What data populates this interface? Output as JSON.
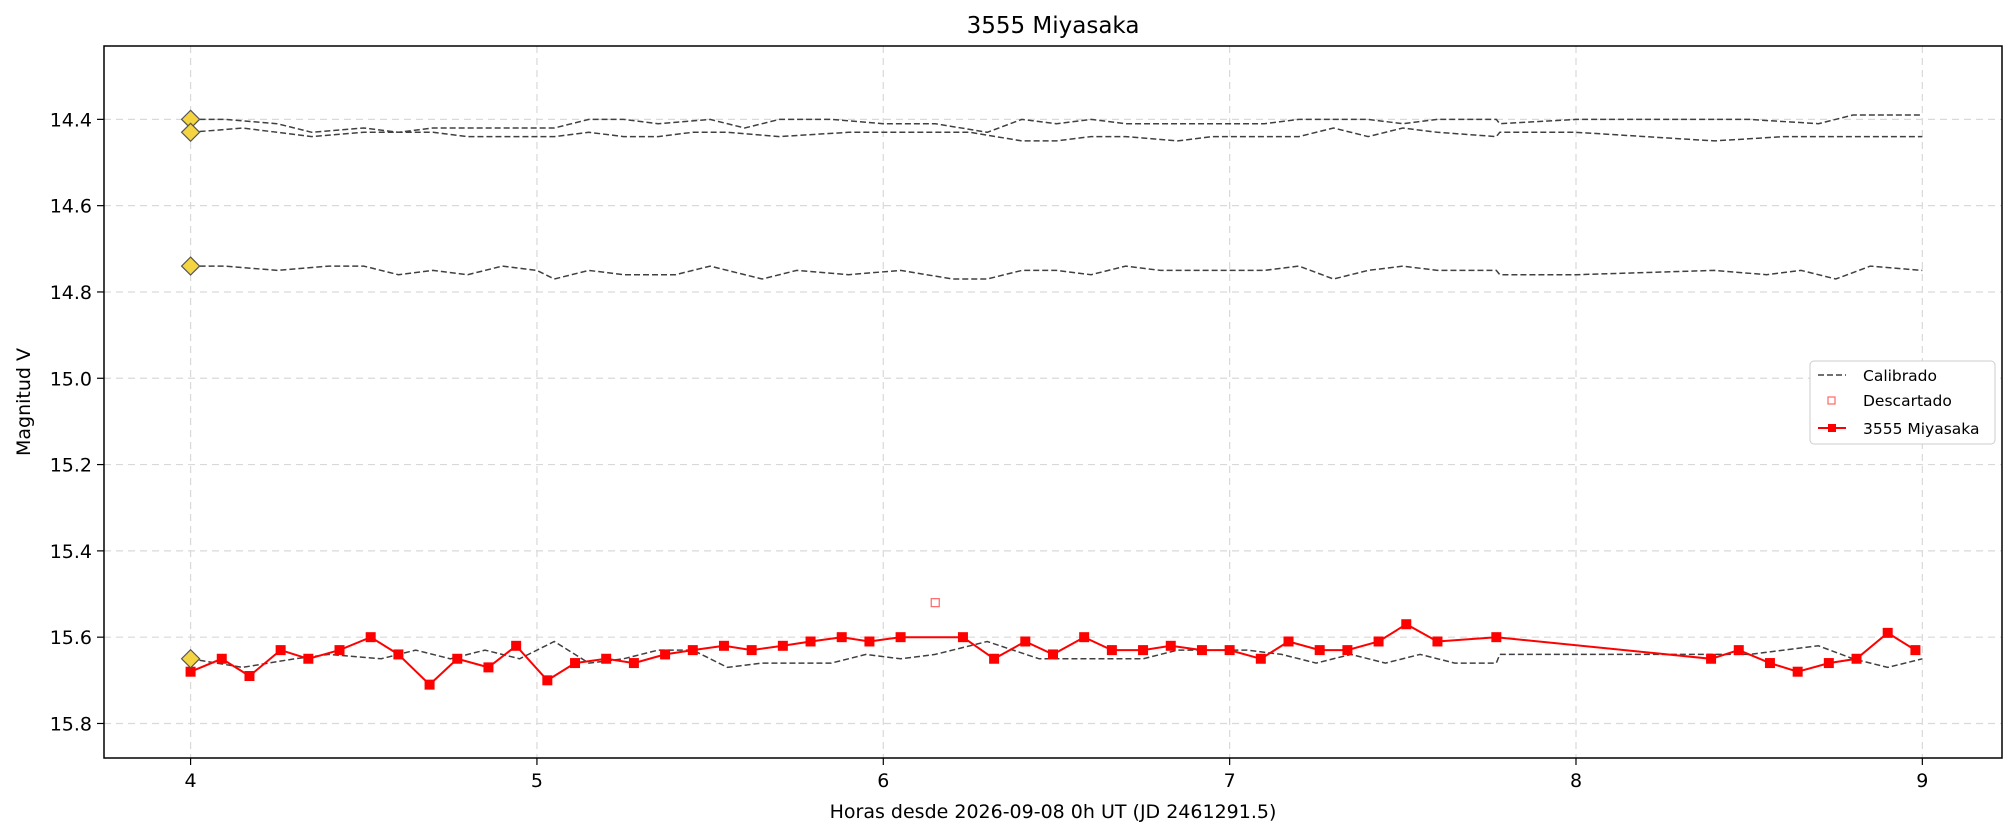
{
  "chart_data": {
    "type": "line",
    "title": "3555 Miyasaka",
    "xlabel": "Horas desde 2026-09-08 0h UT (JD 2461291.5)",
    "ylabel": "Magnitud V",
    "xlim": [
      3.75,
      9.23
    ],
    "ylim": [
      15.88,
      14.23
    ],
    "y_inverted": true,
    "grid": true,
    "legend_position": "center-right",
    "x_ticks": [
      4,
      5,
      6,
      7,
      8,
      9
    ],
    "x_tick_labels": [
      "4",
      "5",
      "6",
      "7",
      "8",
      "9"
    ],
    "y_ticks": [
      14.4,
      14.6,
      14.8,
      15.0,
      15.2,
      15.4,
      15.6,
      15.8
    ],
    "y_tick_labels": [
      "14.4",
      "14.6",
      "14.8",
      "15.0",
      "15.2",
      "15.4",
      "15.6",
      "15.8"
    ],
    "colors": {
      "target": "#ff0000",
      "calibrated": "#404040",
      "reference_marker": "#f5d442",
      "grid": "#d9d9d9"
    },
    "legend": [
      {
        "label": "Calibrado",
        "style": "dashed-gray"
      },
      {
        "label": "Descartado",
        "style": "hollow-red-square"
      },
      {
        "label": "3555 Miyasaka",
        "style": "red-line-square"
      }
    ],
    "series": [
      {
        "name": "3555 Miyasaka",
        "points": [
          [
            4.0,
            15.68
          ],
          [
            4.09,
            15.65
          ],
          [
            4.17,
            15.69
          ],
          [
            4.26,
            15.63
          ],
          [
            4.34,
            15.65
          ],
          [
            4.43,
            15.63
          ],
          [
            4.52,
            15.6
          ],
          [
            4.6,
            15.64
          ],
          [
            4.69,
            15.71
          ],
          [
            4.77,
            15.65
          ],
          [
            4.86,
            15.67
          ],
          [
            4.94,
            15.62
          ],
          [
            5.03,
            15.7
          ],
          [
            5.11,
            15.66
          ],
          [
            5.2,
            15.65
          ],
          [
            5.28,
            15.66
          ],
          [
            5.37,
            15.64
          ],
          [
            5.45,
            15.63
          ],
          [
            5.54,
            15.62
          ],
          [
            5.62,
            15.63
          ],
          [
            5.71,
            15.62
          ],
          [
            5.79,
            15.61
          ],
          [
            5.88,
            15.6
          ],
          [
            5.96,
            15.61
          ],
          [
            6.05,
            15.6
          ],
          [
            6.23,
            15.6
          ],
          [
            6.32,
            15.65
          ],
          [
            6.41,
            15.61
          ],
          [
            6.49,
            15.64
          ],
          [
            6.58,
            15.6
          ],
          [
            6.66,
            15.63
          ],
          [
            6.75,
            15.63
          ],
          [
            6.83,
            15.62
          ],
          [
            6.92,
            15.63
          ],
          [
            7.0,
            15.63
          ],
          [
            7.09,
            15.65
          ],
          [
            7.17,
            15.61
          ],
          [
            7.26,
            15.63
          ],
          [
            7.34,
            15.63
          ],
          [
            7.43,
            15.61
          ],
          [
            7.51,
            15.57
          ],
          [
            7.6,
            15.61
          ],
          [
            7.77,
            15.6
          ],
          [
            8.39,
            15.65
          ],
          [
            8.47,
            15.63
          ],
          [
            8.56,
            15.66
          ],
          [
            8.64,
            15.68
          ],
          [
            8.73,
            15.66
          ],
          [
            8.81,
            15.65
          ],
          [
            8.9,
            15.59
          ],
          [
            8.98,
            15.63
          ]
        ]
      },
      {
        "name": "Descartado",
        "points": [
          [
            6.15,
            15.52
          ]
        ]
      }
    ],
    "calibration_stars": [
      {
        "points": [
          [
            4.0,
            14.4
          ],
          [
            4.1,
            14.4
          ],
          [
            4.25,
            14.41
          ],
          [
            4.35,
            14.43
          ],
          [
            4.5,
            14.42
          ],
          [
            4.6,
            14.43
          ],
          [
            4.7,
            14.42
          ],
          [
            4.8,
            14.42
          ],
          [
            4.9,
            14.42
          ],
          [
            5.05,
            14.42
          ],
          [
            5.15,
            14.4
          ],
          [
            5.25,
            14.4
          ],
          [
            5.35,
            14.41
          ],
          [
            5.5,
            14.4
          ],
          [
            5.6,
            14.42
          ],
          [
            5.7,
            14.4
          ],
          [
            5.85,
            14.4
          ],
          [
            6.0,
            14.41
          ],
          [
            6.15,
            14.41
          ],
          [
            6.3,
            14.43
          ],
          [
            6.4,
            14.4
          ],
          [
            6.5,
            14.41
          ],
          [
            6.6,
            14.4
          ],
          [
            6.7,
            14.41
          ],
          [
            6.85,
            14.41
          ],
          [
            7.0,
            14.41
          ],
          [
            7.1,
            14.41
          ],
          [
            7.2,
            14.4
          ],
          [
            7.3,
            14.4
          ],
          [
            7.4,
            14.4
          ],
          [
            7.5,
            14.41
          ],
          [
            7.6,
            14.4
          ],
          [
            7.77,
            14.4
          ],
          [
            7.78,
            14.41
          ],
          [
            8.0,
            14.4
          ],
          [
            8.3,
            14.4
          ],
          [
            8.5,
            14.4
          ],
          [
            8.7,
            14.41
          ],
          [
            8.8,
            14.39
          ],
          [
            8.9,
            14.39
          ],
          [
            9.0,
            14.39
          ]
        ]
      },
      {
        "points": [
          [
            4.0,
            14.43
          ],
          [
            4.15,
            14.42
          ],
          [
            4.35,
            14.44
          ],
          [
            4.5,
            14.43
          ],
          [
            4.6,
            14.43
          ],
          [
            4.7,
            14.43
          ],
          [
            4.8,
            14.44
          ],
          [
            5.05,
            14.44
          ],
          [
            5.15,
            14.43
          ],
          [
            5.25,
            14.44
          ],
          [
            5.35,
            14.44
          ],
          [
            5.45,
            14.43
          ],
          [
            5.55,
            14.43
          ],
          [
            5.7,
            14.44
          ],
          [
            5.9,
            14.43
          ],
          [
            6.1,
            14.43
          ],
          [
            6.25,
            14.43
          ],
          [
            6.4,
            14.45
          ],
          [
            6.5,
            14.45
          ],
          [
            6.6,
            14.44
          ],
          [
            6.7,
            14.44
          ],
          [
            6.85,
            14.45
          ],
          [
            6.95,
            14.44
          ],
          [
            7.05,
            14.44
          ],
          [
            7.2,
            14.44
          ],
          [
            7.3,
            14.42
          ],
          [
            7.4,
            14.44
          ],
          [
            7.5,
            14.42
          ],
          [
            7.6,
            14.43
          ],
          [
            7.77,
            14.44
          ],
          [
            7.78,
            14.43
          ],
          [
            8.0,
            14.43
          ],
          [
            8.4,
            14.45
          ],
          [
            8.6,
            14.44
          ],
          [
            8.75,
            14.44
          ],
          [
            8.85,
            14.44
          ],
          [
            9.0,
            14.44
          ]
        ]
      },
      {
        "points": [
          [
            4.0,
            14.74
          ],
          [
            4.1,
            14.74
          ],
          [
            4.25,
            14.75
          ],
          [
            4.4,
            14.74
          ],
          [
            4.5,
            14.74
          ],
          [
            4.6,
            14.76
          ],
          [
            4.7,
            14.75
          ],
          [
            4.8,
            14.76
          ],
          [
            4.9,
            14.74
          ],
          [
            5.0,
            14.75
          ],
          [
            5.05,
            14.77
          ],
          [
            5.15,
            14.75
          ],
          [
            5.25,
            14.76
          ],
          [
            5.4,
            14.76
          ],
          [
            5.5,
            14.74
          ],
          [
            5.65,
            14.77
          ],
          [
            5.75,
            14.75
          ],
          [
            5.9,
            14.76
          ],
          [
            6.05,
            14.75
          ],
          [
            6.2,
            14.77
          ],
          [
            6.3,
            14.77
          ],
          [
            6.4,
            14.75
          ],
          [
            6.5,
            14.75
          ],
          [
            6.6,
            14.76
          ],
          [
            6.7,
            14.74
          ],
          [
            6.8,
            14.75
          ],
          [
            6.9,
            14.75
          ],
          [
            7.0,
            14.75
          ],
          [
            7.1,
            14.75
          ],
          [
            7.2,
            14.74
          ],
          [
            7.3,
            14.77
          ],
          [
            7.4,
            14.75
          ],
          [
            7.5,
            14.74
          ],
          [
            7.6,
            14.75
          ],
          [
            7.77,
            14.75
          ],
          [
            7.78,
            14.76
          ],
          [
            8.0,
            14.76
          ],
          [
            8.4,
            14.75
          ],
          [
            8.55,
            14.76
          ],
          [
            8.65,
            14.75
          ],
          [
            8.75,
            14.77
          ],
          [
            8.85,
            14.74
          ],
          [
            9.0,
            14.75
          ]
        ]
      },
      {
        "points": [
          [
            4.0,
            15.65
          ],
          [
            4.15,
            15.67
          ],
          [
            4.3,
            15.65
          ],
          [
            4.4,
            15.64
          ],
          [
            4.55,
            15.65
          ],
          [
            4.65,
            15.63
          ],
          [
            4.75,
            15.65
          ],
          [
            4.85,
            15.63
          ],
          [
            4.95,
            15.65
          ],
          [
            5.05,
            15.61
          ],
          [
            5.15,
            15.66
          ],
          [
            5.25,
            15.65
          ],
          [
            5.35,
            15.63
          ],
          [
            5.45,
            15.63
          ],
          [
            5.55,
            15.67
          ],
          [
            5.65,
            15.66
          ],
          [
            5.75,
            15.66
          ],
          [
            5.85,
            15.66
          ],
          [
            5.95,
            15.64
          ],
          [
            6.05,
            15.65
          ],
          [
            6.15,
            15.64
          ],
          [
            6.3,
            15.61
          ],
          [
            6.45,
            15.65
          ],
          [
            6.55,
            15.65
          ],
          [
            6.65,
            15.65
          ],
          [
            6.75,
            15.65
          ],
          [
            6.85,
            15.63
          ],
          [
            6.95,
            15.63
          ],
          [
            7.05,
            15.63
          ],
          [
            7.15,
            15.64
          ],
          [
            7.25,
            15.66
          ],
          [
            7.35,
            15.64
          ],
          [
            7.45,
            15.66
          ],
          [
            7.55,
            15.64
          ],
          [
            7.65,
            15.66
          ],
          [
            7.77,
            15.66
          ],
          [
            7.78,
            15.64
          ],
          [
            8.0,
            15.64
          ],
          [
            8.4,
            15.64
          ],
          [
            8.5,
            15.64
          ],
          [
            8.6,
            15.63
          ],
          [
            8.7,
            15.62
          ],
          [
            8.8,
            15.65
          ],
          [
            8.9,
            15.67
          ],
          [
            9.0,
            15.65
          ]
        ]
      }
    ],
    "reference_markers": [
      [
        4.0,
        14.4
      ],
      [
        4.0,
        14.43
      ],
      [
        4.0,
        14.74
      ],
      [
        4.0,
        15.65
      ]
    ]
  }
}
